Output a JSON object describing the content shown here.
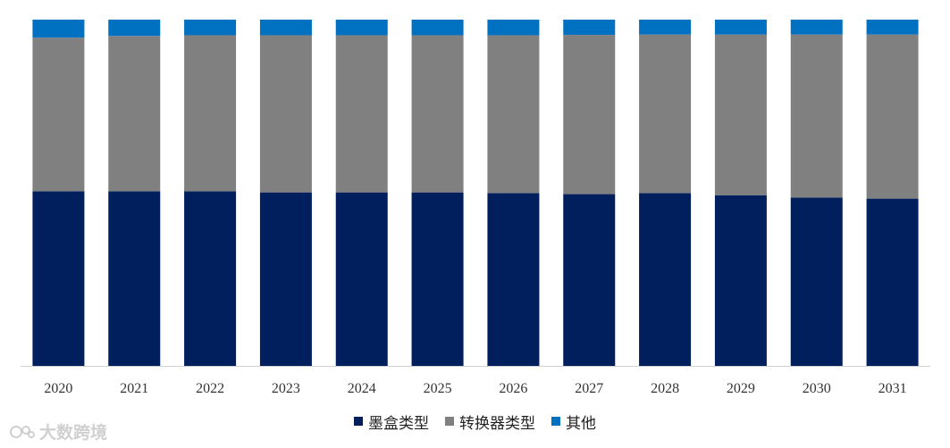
{
  "chart_data": {
    "type": "bar",
    "stacked": true,
    "normalized": true,
    "categories": [
      "2020",
      "2021",
      "2022",
      "2023",
      "2024",
      "2025",
      "2026",
      "2027",
      "2028",
      "2029",
      "2030",
      "2031"
    ],
    "series": [
      {
        "name": "墨盒类型",
        "color": "#001f5c",
        "values": [
          50.4,
          50.4,
          50.4,
          50.1,
          50.1,
          50.1,
          49.9,
          49.6,
          49.9,
          49.3,
          48.6,
          48.3
        ]
      },
      {
        "name": "转换器类型",
        "color": "#808080",
        "values": [
          44.4,
          44.9,
          45.1,
          45.4,
          45.4,
          45.4,
          45.6,
          46.0,
          45.8,
          46.4,
          47.1,
          47.4
        ]
      },
      {
        "name": "其他",
        "color": "#0070c0",
        "values": [
          5.2,
          4.7,
          4.5,
          4.5,
          4.5,
          4.5,
          4.5,
          4.4,
          4.3,
          4.3,
          4.3,
          4.3
        ]
      }
    ],
    "ylim": [
      0,
      100
    ],
    "grid": false,
    "legend_position": "bottom"
  },
  "watermark": {
    "text": "大数跨境"
  }
}
